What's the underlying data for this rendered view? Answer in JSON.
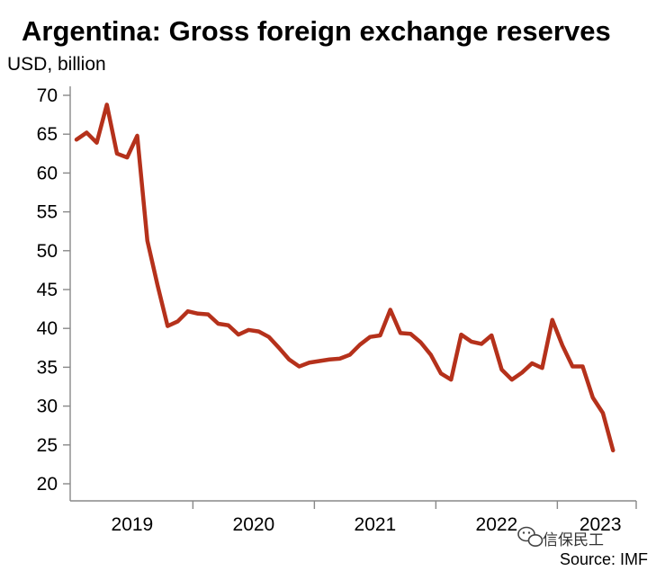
{
  "chart_data": {
    "type": "line",
    "title": "Argentina: Gross foreign exchange reserves",
    "ylabel": "USD, billion",
    "xlabel": "",
    "ylim": [
      20,
      70
    ],
    "yticks": [
      20,
      25,
      30,
      35,
      40,
      45,
      50,
      55,
      60,
      65,
      70
    ],
    "x_tick_labels": [
      "2019",
      "2020",
      "2021",
      "2022",
      "2023"
    ],
    "grid": false,
    "line_color": "#B5311B",
    "x": [
      "2019-01",
      "2019-02",
      "2019-03",
      "2019-04",
      "2019-05",
      "2019-06",
      "2019-07",
      "2019-08",
      "2019-09",
      "2019-10",
      "2019-11",
      "2019-12",
      "2020-01",
      "2020-02",
      "2020-03",
      "2020-04",
      "2020-05",
      "2020-06",
      "2020-07",
      "2020-08",
      "2020-09",
      "2020-10",
      "2020-11",
      "2020-12",
      "2021-01",
      "2021-02",
      "2021-03",
      "2021-04",
      "2021-05",
      "2021-06",
      "2021-07",
      "2021-08",
      "2021-09",
      "2021-10",
      "2021-11",
      "2021-12",
      "2022-01",
      "2022-02",
      "2022-03",
      "2022-04",
      "2022-05",
      "2022-06",
      "2022-07",
      "2022-08",
      "2022-09",
      "2022-10",
      "2022-11",
      "2022-12",
      "2023-01",
      "2023-02",
      "2023-03",
      "2023-04",
      "2023-05",
      "2023-06"
    ],
    "series": [
      {
        "values": [
          64.3,
          65.2,
          63.9,
          68.8,
          62.5,
          62.0,
          64.8,
          51.3,
          45.6,
          40.3,
          40.9,
          42.2,
          41.9,
          41.8,
          40.6,
          40.4,
          39.2,
          39.8,
          39.6,
          38.9,
          37.5,
          36.0,
          35.1,
          35.6,
          35.8,
          36.0,
          36.1,
          36.6,
          37.9,
          38.9,
          39.1,
          42.4,
          39.4,
          39.3,
          38.2,
          36.6,
          34.2,
          33.4,
          39.2,
          38.3,
          38.0,
          39.1,
          34.7,
          33.4,
          34.3,
          35.5,
          34.9,
          41.1,
          37.8,
          35.1,
          35.1,
          31.1,
          29.1,
          24.3
        ]
      }
    ],
    "source": "Source: IMF"
  },
  "watermark": {
    "text": "信保民工",
    "icon": "wechat-icon"
  }
}
